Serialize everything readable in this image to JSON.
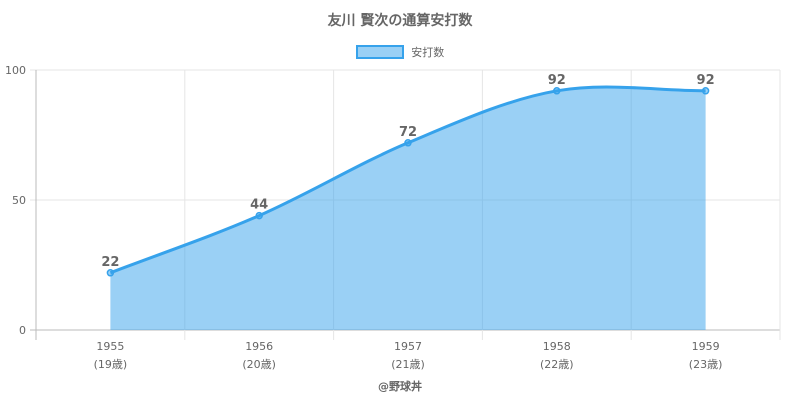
{
  "chart_data": {
    "type": "area",
    "title": "友川 賢次の通算安打数",
    "categories": [
      "1955",
      "1956",
      "1957",
      "1958",
      "1959"
    ],
    "sublabels": [
      "(19歳)",
      "(20歳)",
      "(21歳)",
      "(22歳)",
      "(23歳)"
    ],
    "series": [
      {
        "name": "安打数",
        "values": [
          22,
          44,
          72,
          92,
          92
        ]
      }
    ],
    "ylim": [
      0,
      100
    ],
    "yticks": [
      0,
      50,
      100
    ],
    "grid": true,
    "legend_position": "top",
    "colors": {
      "line": "#36a2eb",
      "fill": "rgba(54,162,235,0.5)",
      "text": "#666666",
      "grid": "#e5e5e5"
    }
  },
  "credit": "@野球丼"
}
